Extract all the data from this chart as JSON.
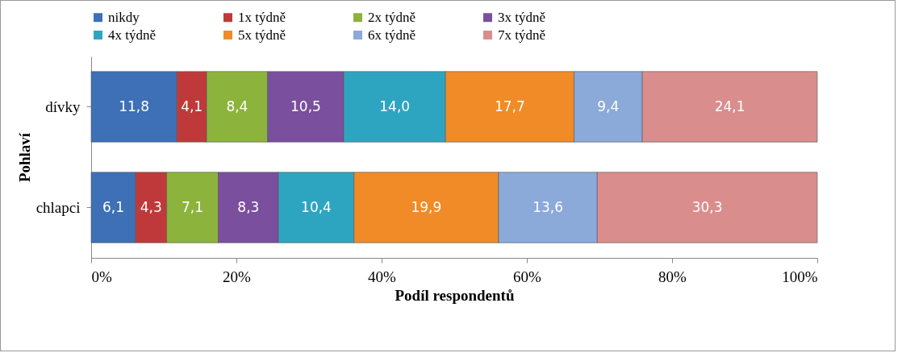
{
  "chart_data": {
    "type": "bar",
    "orientation": "horizontal",
    "stacked": true,
    "legend": "top",
    "grid": false,
    "xlabel": "Podíl respondentů",
    "ylabel": "Pohlaví",
    "categories": [
      "dívky",
      "chlapci"
    ],
    "xlim": [
      0,
      100
    ],
    "xticks": [
      {
        "value": 0,
        "label": "0%"
      },
      {
        "value": 20,
        "label": "20%"
      },
      {
        "value": 40,
        "label": "40%"
      },
      {
        "value": 60,
        "label": "60%"
      },
      {
        "value": 80,
        "label": "80%"
      },
      {
        "value": 100,
        "label": "100%"
      }
    ],
    "series": [
      {
        "name": "nikdy",
        "color": "#3d70b6",
        "values": [
          11.8,
          6.1
        ],
        "value_labels": [
          "11,8",
          "6,1"
        ]
      },
      {
        "name": "1x týdně",
        "color": "#c0393a",
        "values": [
          4.1,
          4.3
        ],
        "value_labels": [
          "4,1",
          "4,3"
        ]
      },
      {
        "name": "2x týdně",
        "color": "#8cb33c",
        "values": [
          8.4,
          7.1
        ],
        "value_labels": [
          "8,4",
          "7,1"
        ]
      },
      {
        "name": "3x týdně",
        "color": "#7a4f9e",
        "values": [
          10.5,
          8.3
        ],
        "value_labels": [
          "10,5",
          "8,3"
        ]
      },
      {
        "name": "4x týdně",
        "color": "#2ea5c0",
        "values": [
          14.0,
          10.4
        ],
        "value_labels": [
          "14,0",
          "10,4"
        ]
      },
      {
        "name": "5x týdně",
        "color": "#f08b27",
        "values": [
          17.7,
          19.9
        ],
        "value_labels": [
          "17,7",
          "19,9"
        ]
      },
      {
        "name": "6x týdně",
        "color": "#8ba9d9",
        "values": [
          9.4,
          13.6
        ],
        "value_labels": [
          "9,4",
          "13,6"
        ]
      },
      {
        "name": "7x týdně",
        "color": "#d98d8c",
        "values": [
          24.1,
          30.3
        ],
        "value_labels": [
          "24,1",
          "30,3"
        ]
      }
    ]
  }
}
